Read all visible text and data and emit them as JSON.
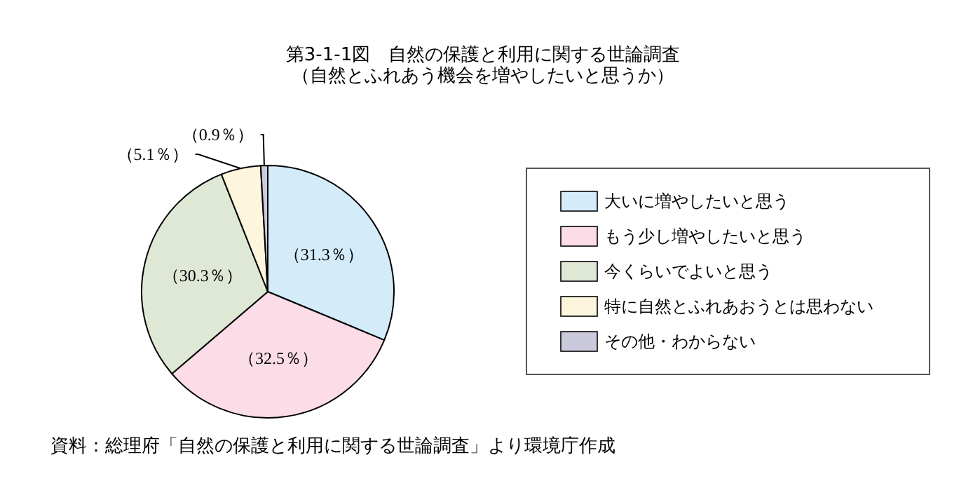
{
  "chart_data": {
    "type": "pie",
    "title": "第3-1-1図　自然の保護と利用に関する世論調査",
    "subtitle": "（自然とふれあう機会を増やしたいと思うか）",
    "categories": [
      "大いに増やしたいと思う",
      "もう少し増やしたいと思う",
      "今くらいでよいと思う",
      "特に自然とふれあおうとは思わない",
      "その他・わからない"
    ],
    "values": [
      31.3,
      32.5,
      30.3,
      5.1,
      0.9
    ],
    "colors": [
      "#d4ecfa",
      "#fcdce6",
      "#dfe8d4",
      "#fdf5dc",
      "#cbcadd"
    ],
    "value_labels": [
      "（31.3％）",
      "（32.5％）",
      "（30.3％）",
      "（5.1％）",
      "（0.9％）"
    ],
    "legend": "right",
    "annotations": [
      "資料：総理府「自然の保護と利用に関する世論調査」より環境庁作成"
    ]
  }
}
